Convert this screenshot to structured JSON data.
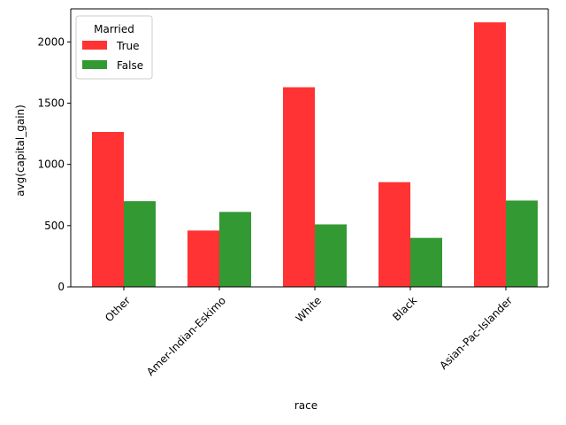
{
  "chart_data": {
    "type": "bar",
    "xlabel": "race",
    "ylabel": "avg(capital_gain)",
    "categories": [
      "Other",
      "Amer-Indian-Eskimo",
      "White",
      "Black",
      "Asian-Pac-Islander"
    ],
    "series": [
      {
        "name": "True",
        "color": "#ff3333",
        "values": [
          1265,
          460,
          1630,
          855,
          2160
        ]
      },
      {
        "name": "False",
        "color": "#339933",
        "values": [
          700,
          612,
          510,
          400,
          705
        ]
      }
    ],
    "ylim": [
      0,
      2270
    ],
    "yticks": [
      0,
      500,
      1000,
      1500,
      2000
    ],
    "legend": {
      "title": "Married",
      "position": "top-left"
    },
    "grid": false
  }
}
